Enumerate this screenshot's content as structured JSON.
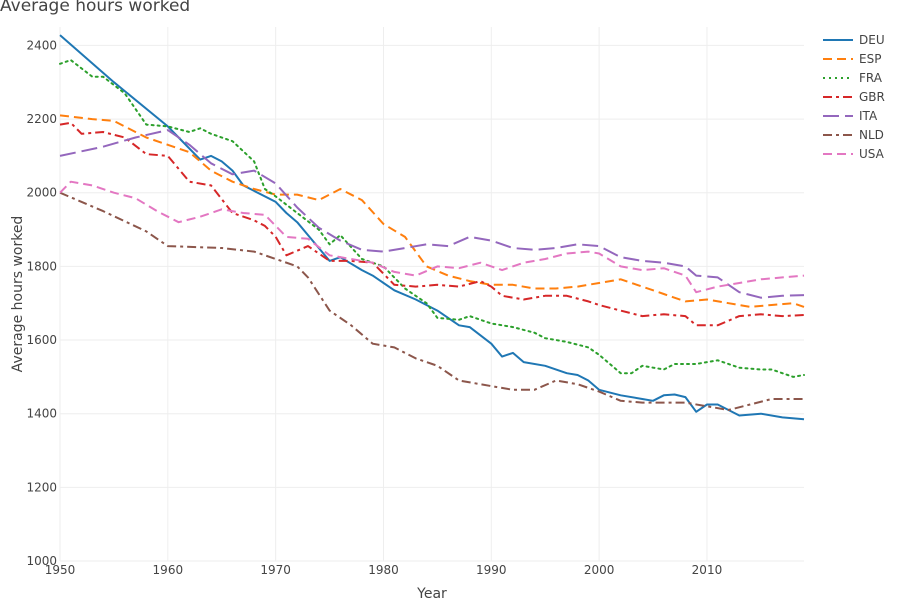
{
  "chart_data": {
    "type": "line",
    "title": "Average hours worked",
    "xlabel": "Year",
    "ylabel": "Average hours worked",
    "xlim": [
      1950,
      2019
    ],
    "ylim": [
      1000,
      2450
    ],
    "xticks": [
      1950,
      1960,
      1970,
      1980,
      1990,
      2000,
      2010
    ],
    "yticks": [
      1000,
      1200,
      1400,
      1600,
      1800,
      2000,
      2200,
      2400
    ],
    "grid": true,
    "legend_position": "top-right",
    "series": [
      {
        "name": "DEU",
        "color": "#1f77b4",
        "dash": "solid",
        "points": [
          [
            1950,
            2428
          ],
          [
            1955,
            2300
          ],
          [
            1960,
            2180
          ],
          [
            1961,
            2150
          ],
          [
            1963,
            2090
          ],
          [
            1964,
            2100
          ],
          [
            1965,
            2085
          ],
          [
            1966,
            2060
          ],
          [
            1967,
            2020
          ],
          [
            1968,
            2005
          ],
          [
            1970,
            1975
          ],
          [
            1971,
            1945
          ],
          [
            1972,
            1920
          ],
          [
            1973,
            1885
          ],
          [
            1974,
            1850
          ],
          [
            1975,
            1815
          ],
          [
            1976,
            1825
          ],
          [
            1978,
            1790
          ],
          [
            1979,
            1775
          ],
          [
            1981,
            1735
          ],
          [
            1983,
            1710
          ],
          [
            1985,
            1680
          ],
          [
            1987,
            1640
          ],
          [
            1988,
            1635
          ],
          [
            1990,
            1590
          ],
          [
            1991,
            1555
          ],
          [
            1992,
            1565
          ],
          [
            1993,
            1540
          ],
          [
            1995,
            1530
          ],
          [
            1997,
            1510
          ],
          [
            1998,
            1505
          ],
          [
            1999,
            1490
          ],
          [
            2000,
            1465
          ],
          [
            2002,
            1450
          ],
          [
            2004,
            1440
          ],
          [
            2005,
            1435
          ],
          [
            2006,
            1450
          ],
          [
            2007,
            1452
          ],
          [
            2008,
            1445
          ],
          [
            2009,
            1405
          ],
          [
            2010,
            1425
          ],
          [
            2011,
            1425
          ],
          [
            2012,
            1410
          ],
          [
            2013,
            1395
          ],
          [
            2015,
            1400
          ],
          [
            2017,
            1390
          ],
          [
            2019,
            1385
          ]
        ]
      },
      {
        "name": "ESP",
        "color": "#ff7f0e",
        "dash": "dash",
        "points": [
          [
            1950,
            2210
          ],
          [
            1953,
            2200
          ],
          [
            1955,
            2195
          ],
          [
            1958,
            2150
          ],
          [
            1960,
            2130
          ],
          [
            1962,
            2110
          ],
          [
            1964,
            2060
          ],
          [
            1966,
            2030
          ],
          [
            1968,
            2010
          ],
          [
            1970,
            1995
          ],
          [
            1972,
            1995
          ],
          [
            1974,
            1980
          ],
          [
            1976,
            2010
          ],
          [
            1978,
            1980
          ],
          [
            1980,
            1915
          ],
          [
            1982,
            1880
          ],
          [
            1984,
            1800
          ],
          [
            1986,
            1775
          ],
          [
            1988,
            1760
          ],
          [
            1990,
            1750
          ],
          [
            1992,
            1750
          ],
          [
            1994,
            1740
          ],
          [
            1996,
            1740
          ],
          [
            1998,
            1745
          ],
          [
            2000,
            1755
          ],
          [
            2002,
            1765
          ],
          [
            2004,
            1745
          ],
          [
            2006,
            1725
          ],
          [
            2008,
            1705
          ],
          [
            2010,
            1710
          ],
          [
            2012,
            1700
          ],
          [
            2014,
            1690
          ],
          [
            2016,
            1695
          ],
          [
            2018,
            1700
          ],
          [
            2019,
            1690
          ]
        ]
      },
      {
        "name": "FRA",
        "color": "#2ca02c",
        "dash": "dot",
        "points": [
          [
            1950,
            2350
          ],
          [
            1951,
            2360
          ],
          [
            1953,
            2315
          ],
          [
            1954,
            2315
          ],
          [
            1956,
            2270
          ],
          [
            1958,
            2185
          ],
          [
            1960,
            2180
          ],
          [
            1962,
            2165
          ],
          [
            1963,
            2175
          ],
          [
            1964,
            2160
          ],
          [
            1966,
            2140
          ],
          [
            1968,
            2085
          ],
          [
            1969,
            2010
          ],
          [
            1970,
            1990
          ],
          [
            1972,
            1945
          ],
          [
            1974,
            1900
          ],
          [
            1975,
            1860
          ],
          [
            1976,
            1885
          ],
          [
            1978,
            1820
          ],
          [
            1980,
            1800
          ],
          [
            1982,
            1740
          ],
          [
            1984,
            1700
          ],
          [
            1985,
            1660
          ],
          [
            1987,
            1655
          ],
          [
            1988,
            1665
          ],
          [
            1990,
            1645
          ],
          [
            1992,
            1635
          ],
          [
            1994,
            1620
          ],
          [
            1995,
            1605
          ],
          [
            1997,
            1595
          ],
          [
            1999,
            1580
          ],
          [
            2000,
            1560
          ],
          [
            2002,
            1510
          ],
          [
            2003,
            1510
          ],
          [
            2004,
            1530
          ],
          [
            2006,
            1520
          ],
          [
            2007,
            1535
          ],
          [
            2009,
            1535
          ],
          [
            2011,
            1545
          ],
          [
            2013,
            1525
          ],
          [
            2015,
            1520
          ],
          [
            2016,
            1520
          ],
          [
            2018,
            1500
          ],
          [
            2019,
            1505
          ]
        ]
      },
      {
        "name": "GBR",
        "color": "#d62728",
        "dash": "dashdot",
        "points": [
          [
            1950,
            2185
          ],
          [
            1951,
            2190
          ],
          [
            1952,
            2160
          ],
          [
            1954,
            2165
          ],
          [
            1956,
            2150
          ],
          [
            1958,
            2105
          ],
          [
            1960,
            2100
          ],
          [
            1962,
            2030
          ],
          [
            1964,
            2020
          ],
          [
            1966,
            1945
          ],
          [
            1968,
            1925
          ],
          [
            1969,
            1910
          ],
          [
            1970,
            1880
          ],
          [
            1971,
            1830
          ],
          [
            1973,
            1855
          ],
          [
            1975,
            1815
          ],
          [
            1977,
            1815
          ],
          [
            1979,
            1810
          ],
          [
            1981,
            1750
          ],
          [
            1983,
            1745
          ],
          [
            1985,
            1750
          ],
          [
            1987,
            1745
          ],
          [
            1989,
            1760
          ],
          [
            1990,
            1745
          ],
          [
            1991,
            1720
          ],
          [
            1993,
            1710
          ],
          [
            1995,
            1720
          ],
          [
            1997,
            1720
          ],
          [
            1999,
            1705
          ],
          [
            2000,
            1695
          ],
          [
            2002,
            1680
          ],
          [
            2004,
            1665
          ],
          [
            2006,
            1670
          ],
          [
            2008,
            1665
          ],
          [
            2009,
            1640
          ],
          [
            2011,
            1640
          ],
          [
            2013,
            1665
          ],
          [
            2015,
            1670
          ],
          [
            2017,
            1665
          ],
          [
            2019,
            1668
          ]
        ]
      },
      {
        "name": "ITA",
        "color": "#9467bd",
        "dash": "longdash",
        "points": [
          [
            1950,
            2100
          ],
          [
            1954,
            2125
          ],
          [
            1957,
            2150
          ],
          [
            1960,
            2170
          ],
          [
            1962,
            2130
          ],
          [
            1964,
            2080
          ],
          [
            1966,
            2050
          ],
          [
            1968,
            2060
          ],
          [
            1970,
            2025
          ],
          [
            1972,
            1960
          ],
          [
            1974,
            1905
          ],
          [
            1976,
            1870
          ],
          [
            1978,
            1845
          ],
          [
            1980,
            1840
          ],
          [
            1982,
            1850
          ],
          [
            1984,
            1860
          ],
          [
            1986,
            1855
          ],
          [
            1988,
            1880
          ],
          [
            1990,
            1870
          ],
          [
            1992,
            1850
          ],
          [
            1994,
            1845
          ],
          [
            1996,
            1850
          ],
          [
            1998,
            1860
          ],
          [
            2000,
            1855
          ],
          [
            2002,
            1825
          ],
          [
            2004,
            1815
          ],
          [
            2006,
            1810
          ],
          [
            2008,
            1800
          ],
          [
            2009,
            1775
          ],
          [
            2011,
            1770
          ],
          [
            2013,
            1730
          ],
          [
            2015,
            1715
          ],
          [
            2017,
            1720
          ],
          [
            2019,
            1722
          ]
        ]
      },
      {
        "name": "NLD",
        "color": "#8c564b",
        "dash": "dashdot",
        "points": [
          [
            1950,
            2000
          ],
          [
            1954,
            1950
          ],
          [
            1958,
            1895
          ],
          [
            1960,
            1855
          ],
          [
            1965,
            1850
          ],
          [
            1968,
            1840
          ],
          [
            1970,
            1820
          ],
          [
            1972,
            1800
          ],
          [
            1973,
            1770
          ],
          [
            1975,
            1680
          ],
          [
            1977,
            1640
          ],
          [
            1979,
            1590
          ],
          [
            1981,
            1580
          ],
          [
            1983,
            1550
          ],
          [
            1985,
            1530
          ],
          [
            1987,
            1490
          ],
          [
            1990,
            1475
          ],
          [
            1992,
            1465
          ],
          [
            1994,
            1465
          ],
          [
            1996,
            1490
          ],
          [
            1998,
            1480
          ],
          [
            2000,
            1460
          ],
          [
            2002,
            1435
          ],
          [
            2004,
            1430
          ],
          [
            2006,
            1430
          ],
          [
            2008,
            1430
          ],
          [
            2010,
            1420
          ],
          [
            2012,
            1410
          ],
          [
            2014,
            1425
          ],
          [
            2016,
            1440
          ],
          [
            2019,
            1440
          ]
        ]
      },
      {
        "name": "USA",
        "color": "#e377c2",
        "dash": "dash",
        "points": [
          [
            1950,
            2000
          ],
          [
            1951,
            2030
          ],
          [
            1953,
            2020
          ],
          [
            1955,
            2000
          ],
          [
            1957,
            1985
          ],
          [
            1959,
            1950
          ],
          [
            1961,
            1920
          ],
          [
            1963,
            1935
          ],
          [
            1965,
            1955
          ],
          [
            1967,
            1945
          ],
          [
            1969,
            1940
          ],
          [
            1971,
            1880
          ],
          [
            1973,
            1875
          ],
          [
            1975,
            1830
          ],
          [
            1977,
            1820
          ],
          [
            1979,
            1810
          ],
          [
            1981,
            1785
          ],
          [
            1983,
            1775
          ],
          [
            1985,
            1800
          ],
          [
            1987,
            1795
          ],
          [
            1989,
            1810
          ],
          [
            1991,
            1790
          ],
          [
            1993,
            1810
          ],
          [
            1995,
            1820
          ],
          [
            1997,
            1835
          ],
          [
            1999,
            1840
          ],
          [
            2000,
            1835
          ],
          [
            2002,
            1800
          ],
          [
            2004,
            1790
          ],
          [
            2006,
            1795
          ],
          [
            2008,
            1775
          ],
          [
            2009,
            1730
          ],
          [
            2011,
            1745
          ],
          [
            2013,
            1755
          ],
          [
            2015,
            1765
          ],
          [
            2017,
            1770
          ],
          [
            2019,
            1775
          ]
        ]
      }
    ]
  }
}
